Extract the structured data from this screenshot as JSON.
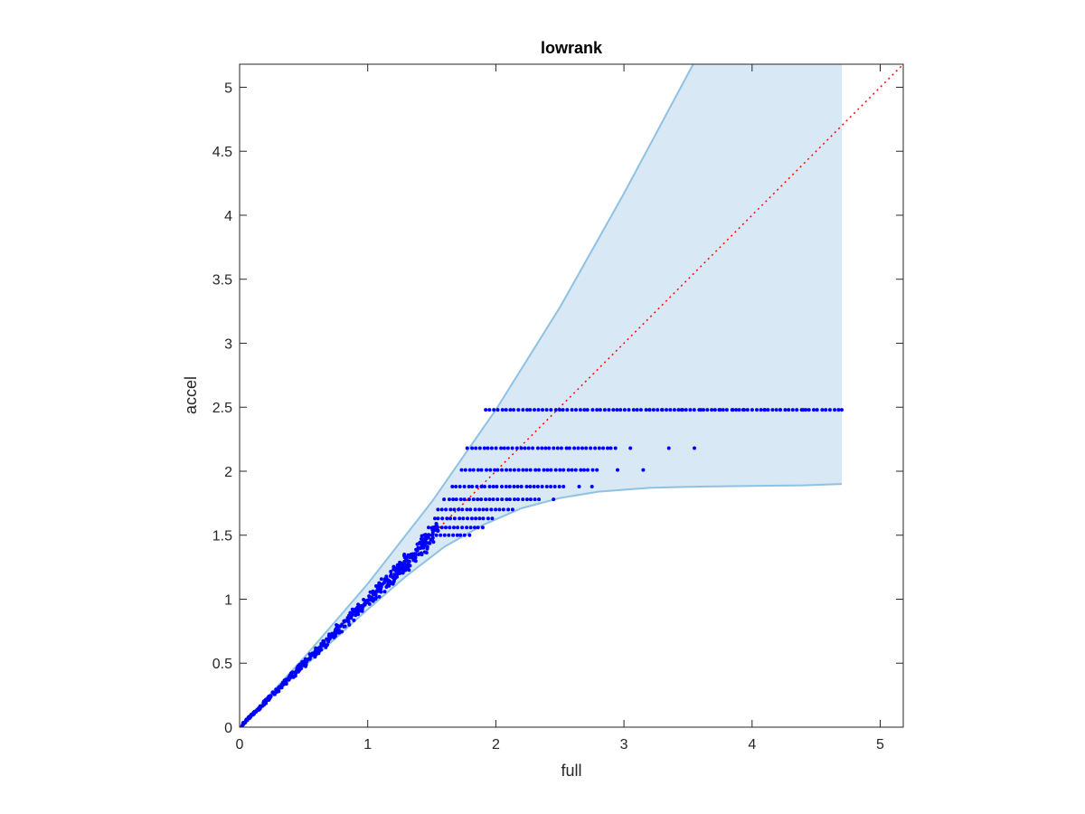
{
  "chart_data": {
    "type": "scatter",
    "title": "lowrank",
    "xlabel": "full",
    "ylabel": "accel",
    "xlim": [
      0,
      5.18
    ],
    "ylim": [
      0,
      5.18
    ],
    "xticks": [
      0,
      1,
      2,
      3,
      4,
      5
    ],
    "yticks": [
      0,
      0.5,
      1,
      1.5,
      2,
      2.5,
      3,
      3.5,
      4,
      4.5,
      5
    ],
    "xtick_labels": [
      "0",
      "1",
      "2",
      "3",
      "4",
      "5"
    ],
    "ytick_labels": [
      "0",
      "0.5",
      "1",
      "1.5",
      "2",
      "2.5",
      "3",
      "3.5",
      "4",
      "4.5",
      "5"
    ],
    "grid": false,
    "box": true,
    "colors": {
      "points": "#0000ff",
      "band_fill": "#d8e8f4",
      "band_edge": "#8fc2e2",
      "reference_line": "#ff0000",
      "axes": "#262626"
    },
    "reference_line": {
      "style": "dotted",
      "x": [
        0,
        5.18
      ],
      "y": [
        0,
        5.18
      ]
    },
    "band": {
      "upper": {
        "x": [
          0,
          0.5,
          1,
          1.5,
          2,
          2.5,
          3,
          3.54
        ],
        "y": [
          0,
          0.54,
          1.12,
          1.76,
          2.48,
          3.28,
          4.17,
          5.18
        ]
      },
      "lower": {
        "x": [
          0,
          0.5,
          1,
          1.3,
          1.6,
          1.9,
          2.2,
          2.5,
          2.8,
          3.2,
          3.6,
          4.0,
          4.4,
          4.7
        ],
        "y": [
          0,
          0.47,
          0.92,
          1.18,
          1.41,
          1.58,
          1.71,
          1.79,
          1.84,
          1.87,
          1.88,
          1.885,
          1.89,
          1.9
        ]
      },
      "right_x": 4.7
    },
    "levels": [
      {
        "y": 2.48,
        "x_min": 1.92,
        "x_max": 4.7,
        "extra_x": [
          3.2,
          3.3,
          3.45,
          3.6,
          3.75,
          3.85,
          3.93,
          4.1,
          4.22,
          4.4,
          4.7
        ]
      },
      {
        "y": 2.18,
        "x_min": 1.78,
        "x_max": 2.95,
        "extra_x": [
          3.05,
          3.35,
          3.55
        ]
      },
      {
        "y": 2.01,
        "x_min": 1.73,
        "x_max": 2.8,
        "extra_x": [
          2.95,
          3.15
        ]
      },
      {
        "y": 1.88,
        "x_min": 1.66,
        "x_max": 2.55,
        "extra_x": [
          2.65,
          2.75
        ]
      },
      {
        "y": 1.78,
        "x_min": 1.6,
        "x_max": 2.35,
        "extra_x": [
          2.45
        ]
      },
      {
        "y": 1.7,
        "x_min": 1.55,
        "x_max": 2.15,
        "extra_x": []
      },
      {
        "y": 1.63,
        "x_min": 1.52,
        "x_max": 2.0,
        "extra_x": []
      },
      {
        "y": 1.56,
        "x_min": 1.48,
        "x_max": 1.9,
        "extra_x": []
      },
      {
        "y": 1.5,
        "x_min": 1.44,
        "x_max": 1.8,
        "extra_x": []
      }
    ],
    "diagonal_cloud": {
      "x_range": [
        0.02,
        1.55
      ],
      "count": 520
    }
  }
}
